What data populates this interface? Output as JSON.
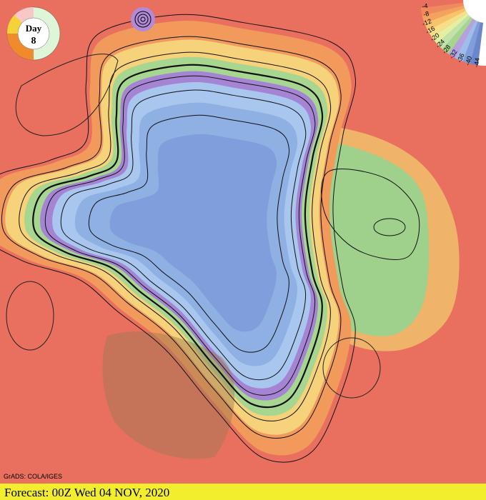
{
  "dial": {
    "label": "Day",
    "day": "8"
  },
  "legend": {
    "labels": [
      "-4",
      "-8",
      "-12",
      "-16",
      "-20",
      "-24",
      "-28",
      "-32",
      "-36",
      "-40",
      "-44"
    ]
  },
  "credit": "GrADS: COLA/IGES",
  "footer": "Forecast: 00Z Wed 04 NOV, 2020"
}
